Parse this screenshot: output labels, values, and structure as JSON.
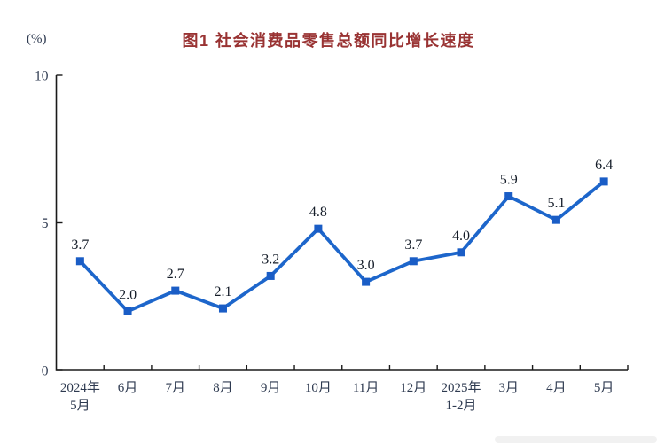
{
  "figure": {
    "background": "#ffffff"
  },
  "chart_data": {
    "type": "line",
    "title": "图1  社会消费品零售总额同比增长速度",
    "unit_label": "(%)",
    "categories": [
      [
        "2024年",
        "5月"
      ],
      [
        "6月"
      ],
      [
        "7月"
      ],
      [
        "8月"
      ],
      [
        "9月"
      ],
      [
        "10月"
      ],
      [
        "11月"
      ],
      [
        "12月"
      ],
      [
        "2025年",
        "1-2月"
      ],
      [
        "3月"
      ],
      [
        "4月"
      ],
      [
        "5月"
      ]
    ],
    "values": [
      3.7,
      2.0,
      2.7,
      2.1,
      3.2,
      4.8,
      3.0,
      3.7,
      4.0,
      5.9,
      5.1,
      6.4
    ],
    "ylabel": "",
    "xlabel": "",
    "ylim": [
      0,
      10
    ],
    "yticks": [
      0,
      5,
      10
    ],
    "grid": false,
    "legend_position": "none",
    "marker_shape": "square",
    "colors": {
      "line": "#1d66cb",
      "marker": "#1a5dc6",
      "title": "#993333",
      "axis": "#1a1a1a",
      "tick_label": "#2e3a50",
      "data_label": "#141c28",
      "scrollbar": "#f1f1f1"
    }
  }
}
